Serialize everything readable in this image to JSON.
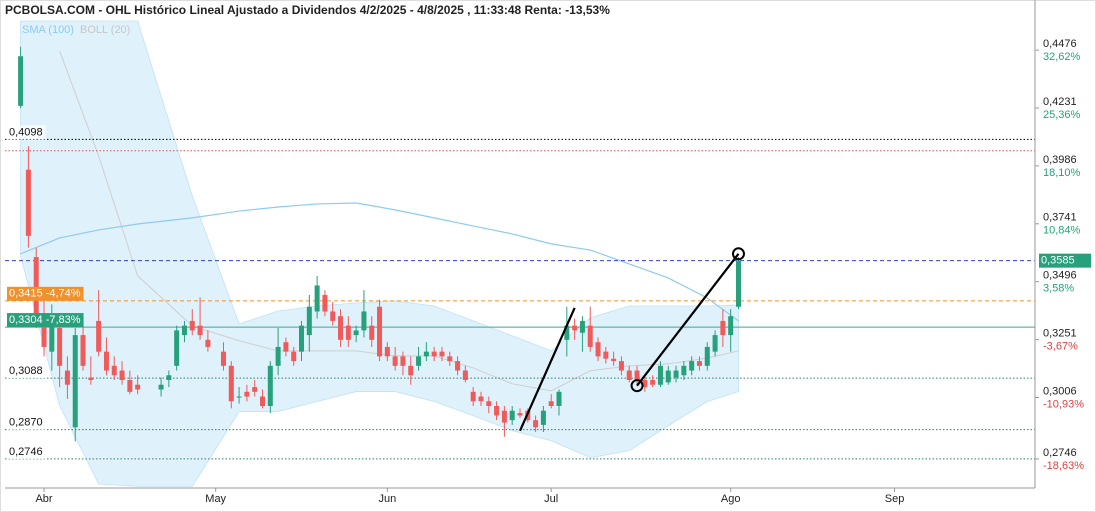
{
  "chart_data": {
    "type": "candlestick",
    "title": "PCBOLSA.COM - OHL Histórico Lineal Ajustado a Dividendos 4/2/2025 - 4/8/2025 , 11:33:48 Renta: -13,53%",
    "up_color": "#26a17b",
    "down_color": "#ef5a5a",
    "xlim": [
      "2025-03-25",
      "2025-09-25"
    ],
    "xticks": [
      {
        "value": "2025-04-01",
        "label": "Abr"
      },
      {
        "value": "2025-05-01",
        "label": "May"
      },
      {
        "value": "2025-06-02",
        "label": "Jun"
      },
      {
        "value": "2025-07-01",
        "label": "Jul"
      },
      {
        "value": "2025-08-01",
        "label": "Ago"
      },
      {
        "value": "2025-09-01",
        "label": "Sep"
      }
    ],
    "ylim": [
      0.2623,
      0.4688
    ],
    "yticks": [
      {
        "value": 0.4476,
        "label": "0,4476"
      },
      {
        "value": 0.4231,
        "label": "0,4231"
      },
      {
        "value": 0.3986,
        "label": "0,3986"
      },
      {
        "value": 0.3741,
        "label": "0,3741"
      },
      {
        "value": 0.3496,
        "label": "0,3496"
      },
      {
        "value": 0.3251,
        "label": "0,3251"
      },
      {
        "value": 0.3006,
        "label": "0,3006"
      },
      {
        "value": 0.2746,
        "label": "0,2746"
      }
    ],
    "ytick_percent": [
      "32,62%",
      "25,36%",
      "18,10%",
      "10,84%",
      "3,58%",
      "-3,67%",
      "-10,93%",
      "-18,63%"
    ],
    "x": [
      "2025-03-27",
      "2025-03-28",
      "2025-03-31",
      "2025-04-01",
      "2025-04-02",
      "2025-04-03",
      "2025-04-04",
      "2025-04-07",
      "2025-04-08",
      "2025-04-09",
      "2025-04-10",
      "2025-04-11",
      "2025-04-14",
      "2025-04-15",
      "2025-04-16",
      "2025-04-17",
      "2025-04-22",
      "2025-04-23",
      "2025-04-24",
      "2025-04-25",
      "2025-04-28",
      "2025-04-29",
      "2025-04-30",
      "2025-05-02",
      "2025-05-05",
      "2025-05-06",
      "2025-05-07",
      "2025-05-08",
      "2025-05-09",
      "2025-05-12",
      "2025-05-13",
      "2025-05-14",
      "2025-05-15",
      "2025-05-16",
      "2025-05-19",
      "2025-05-20",
      "2025-05-21",
      "2025-05-22",
      "2025-05-23",
      "2025-05-26",
      "2025-05-27",
      "2025-05-28",
      "2025-05-29",
      "2025-05-30",
      "2025-06-02",
      "2025-06-03",
      "2025-06-04",
      "2025-06-05",
      "2025-06-06",
      "2025-06-09",
      "2025-06-10",
      "2025-06-11",
      "2025-06-12",
      "2025-06-13",
      "2025-06-16",
      "2025-06-17",
      "2025-06-18",
      "2025-06-19",
      "2025-06-20",
      "2025-06-23",
      "2025-06-24",
      "2025-06-25",
      "2025-06-26",
      "2025-06-27",
      "2025-06-30",
      "2025-07-01",
      "2025-07-02",
      "2025-07-03",
      "2025-07-04",
      "2025-07-07",
      "2025-07-08",
      "2025-07-09",
      "2025-07-10",
      "2025-07-11",
      "2025-07-14",
      "2025-07-15",
      "2025-07-16",
      "2025-07-17",
      "2025-07-18",
      "2025-07-21",
      "2025-07-22",
      "2025-07-23",
      "2025-07-24",
      "2025-07-25",
      "2025-07-28",
      "2025-07-29",
      "2025-07-30",
      "2025-07-31",
      "2025-08-01",
      "2025-08-04"
    ],
    "open": [
      0.424,
      0.397,
      0.36,
      0.335,
      0.32,
      0.33,
      0.312,
      0.288,
      0.327,
      0.309,
      0.333,
      0.32,
      0.314,
      0.312,
      0.308,
      0.306,
      0.304,
      0.308,
      0.314,
      0.327,
      0.333,
      0.331,
      0.325,
      0.32,
      0.314,
      0.301,
      0.303,
      0.305,
      0.301,
      0.297,
      0.314,
      0.324,
      0.32,
      0.32,
      0.327,
      0.337,
      0.344,
      0.337,
      0.335,
      0.331,
      0.327,
      0.329,
      0.331,
      0.339,
      0.322,
      0.318,
      0.318,
      0.314,
      0.314,
      0.318,
      0.32,
      0.32,
      0.318,
      0.316,
      0.312,
      0.303,
      0.301,
      0.299,
      0.297,
      0.295,
      0.291,
      0.294,
      0.295,
      0.291,
      0.289,
      0.299,
      0.297,
      0.325,
      0.331,
      0.328,
      0.331,
      0.324,
      0.32,
      0.317,
      0.316,
      0.312,
      0.312,
      0.308,
      0.308,
      0.306,
      0.307,
      0.309,
      0.31,
      0.312,
      0.316,
      0.314,
      0.32,
      0.333,
      0.327,
      0.339
    ],
    "high": [
      0.449,
      0.407,
      0.364,
      0.346,
      0.34,
      0.335,
      0.318,
      0.33,
      0.335,
      0.318,
      0.346,
      0.326,
      0.318,
      0.316,
      0.312,
      0.31,
      0.309,
      0.312,
      0.331,
      0.333,
      0.338,
      0.343,
      0.329,
      0.324,
      0.316,
      0.305,
      0.306,
      0.308,
      0.304,
      0.316,
      0.33,
      0.326,
      0.322,
      0.333,
      0.344,
      0.352,
      0.346,
      0.341,
      0.338,
      0.335,
      0.331,
      0.346,
      0.335,
      0.342,
      0.324,
      0.322,
      0.32,
      0.318,
      0.322,
      0.324,
      0.322,
      0.322,
      0.32,
      0.318,
      0.314,
      0.305,
      0.303,
      0.301,
      0.299,
      0.297,
      0.297,
      0.296,
      0.296,
      0.293,
      0.297,
      0.302,
      0.304,
      0.339,
      0.334,
      0.335,
      0.339,
      0.326,
      0.322,
      0.32,
      0.318,
      0.314,
      0.314,
      0.31,
      0.31,
      0.316,
      0.314,
      0.314,
      0.316,
      0.318,
      0.318,
      0.324,
      0.329,
      0.338,
      0.338,
      0.36
    ],
    "low": [
      0.423,
      0.364,
      0.33,
      0.318,
      0.312,
      0.305,
      0.3,
      0.282,
      0.312,
      0.306,
      0.318,
      0.31,
      0.308,
      0.306,
      0.302,
      0.302,
      0.301,
      0.305,
      0.312,
      0.324,
      0.327,
      0.325,
      0.32,
      0.312,
      0.296,
      0.298,
      0.299,
      0.301,
      0.296,
      0.294,
      0.31,
      0.318,
      0.314,
      0.316,
      0.32,
      0.334,
      0.335,
      0.331,
      0.322,
      0.322,
      0.324,
      0.326,
      0.322,
      0.316,
      0.316,
      0.312,
      0.31,
      0.306,
      0.312,
      0.316,
      0.316,
      0.316,
      0.314,
      0.31,
      0.307,
      0.297,
      0.297,
      0.294,
      0.291,
      0.284,
      0.289,
      0.292,
      0.29,
      0.286,
      0.286,
      0.296,
      0.293,
      0.318,
      0.325,
      0.32,
      0.32,
      0.316,
      0.315,
      0.314,
      0.31,
      0.307,
      0.306,
      0.303,
      0.305,
      0.305,
      0.306,
      0.307,
      0.308,
      0.31,
      0.312,
      0.312,
      0.318,
      0.322,
      0.32,
      0.338
    ],
    "close": [
      0.445,
      0.369,
      0.335,
      0.322,
      0.336,
      0.314,
      0.306,
      0.327,
      0.314,
      0.308,
      0.32,
      0.312,
      0.31,
      0.308,
      0.303,
      0.304,
      0.306,
      0.31,
      0.329,
      0.331,
      0.329,
      0.327,
      0.322,
      0.314,
      0.299,
      0.301,
      0.301,
      0.303,
      0.297,
      0.314,
      0.322,
      0.32,
      0.316,
      0.331,
      0.339,
      0.348,
      0.337,
      0.333,
      0.325,
      0.325,
      0.329,
      0.337,
      0.325,
      0.318,
      0.318,
      0.314,
      0.314,
      0.31,
      0.318,
      0.32,
      0.318,
      0.318,
      0.316,
      0.312,
      0.308,
      0.299,
      0.299,
      0.297,
      0.293,
      0.29,
      0.295,
      0.293,
      0.291,
      0.288,
      0.295,
      0.297,
      0.303,
      0.331,
      0.329,
      0.333,
      0.322,
      0.318,
      0.317,
      0.316,
      0.312,
      0.308,
      0.308,
      0.305,
      0.306,
      0.314,
      0.312,
      0.312,
      0.314,
      0.316,
      0.314,
      0.322,
      0.327,
      0.327,
      0.335,
      0.3585
    ],
    "sma": {
      "name": "SMA (100)",
      "color": "#8ecbef",
      "x": [
        "2025-03-27",
        "2025-04-03",
        "2025-04-10",
        "2025-04-17",
        "2025-04-28",
        "2025-05-06",
        "2025-05-13",
        "2025-05-20",
        "2025-05-27",
        "2025-06-03",
        "2025-06-10",
        "2025-06-17",
        "2025-06-24",
        "2025-07-01",
        "2025-07-08",
        "2025-07-15",
        "2025-07-22",
        "2025-07-29",
        "2025-08-04"
      ],
      "values": [
        0.3614,
        0.3681,
        0.3715,
        0.374,
        0.3766,
        0.3795,
        0.3812,
        0.3825,
        0.3829,
        0.38,
        0.3766,
        0.3732,
        0.3698,
        0.3656,
        0.363,
        0.3571,
        0.3512,
        0.3427,
        0.333
      ]
    },
    "bollinger": {
      "name": "BOLL (20)",
      "color": "#cfcfcf",
      "fill": "#d4ecfa",
      "x": [
        "2025-03-27",
        "2025-04-03",
        "2025-04-10",
        "2025-04-17",
        "2025-04-28",
        "2025-05-06",
        "2025-05-13",
        "2025-05-20",
        "2025-05-27",
        "2025-06-03",
        "2025-06-10",
        "2025-06-17",
        "2025-06-24",
        "2025-07-01",
        "2025-07-08",
        "2025-07-15",
        "2025-07-22",
        "2025-07-29",
        "2025-08-04"
      ],
      "upper": [
        0.4599,
        0.4599,
        0.4599,
        0.4599,
        0.3859,
        0.3317,
        0.3372,
        0.3393,
        0.3406,
        0.3415,
        0.3393,
        0.333,
        0.3267,
        0.3203,
        0.3343,
        0.3393,
        0.3393,
        0.3393,
        0.3397
      ],
      "middle": [
        null,
        0.4472,
        0.4028,
        0.3521,
        0.3309,
        0.3246,
        0.3203,
        0.3203,
        0.3203,
        0.3182,
        0.3182,
        0.3131,
        0.3064,
        0.3034,
        0.3119,
        0.314,
        0.3148,
        0.3173,
        0.3203
      ],
      "lower": [
        0.3605,
        0.2971,
        0.264,
        0.263,
        0.263,
        0.2947,
        0.2947,
        0.2989,
        0.3031,
        0.3031,
        0.2989,
        0.2929,
        0.2866,
        0.2823,
        0.2751,
        0.2781,
        0.2887,
        0.2989,
        0.3031
      ]
    },
    "levels": [
      {
        "value": 0.4098,
        "label": "0,4098",
        "color": "#000000",
        "style": "dotted"
      },
      {
        "value": 0.405,
        "color": "#e05050",
        "style": "dotted"
      },
      {
        "value": 0.3585,
        "label": "0,3585",
        "color": "#3340d0",
        "style": "dashed",
        "side": "right",
        "label_bg": "#26a17b"
      },
      {
        "value": 0.3415,
        "label": "0,3415 -4,74%",
        "color": "#f0912c",
        "style": "dashed",
        "label_bg": "#f0912c"
      },
      {
        "value": 0.3304,
        "label": "0,3304 -7,83%",
        "color": "#3aa89a",
        "style": "solid",
        "label_bg": "#26a17b"
      },
      {
        "value": 0.3088,
        "label": "0,3088",
        "color": "#2e7d6e",
        "style": "dotted"
      },
      {
        "value": 0.287,
        "label": "0,2870",
        "color": "#2e7d6e",
        "style": "dotted"
      },
      {
        "value": 0.2746,
        "label": "0,2746",
        "color": "#2e7d6e",
        "style": "dotted"
      }
    ],
    "trendlines": [
      {
        "x": [
          "2025-06-25",
          "2025-07-04"
        ],
        "values": [
          0.2865,
          0.3385
        ],
        "markers": false
      },
      {
        "x": [
          "2025-07-16",
          "2025-08-04"
        ],
        "values": [
          0.3056,
          0.3614
        ],
        "markers": true
      }
    ]
  }
}
